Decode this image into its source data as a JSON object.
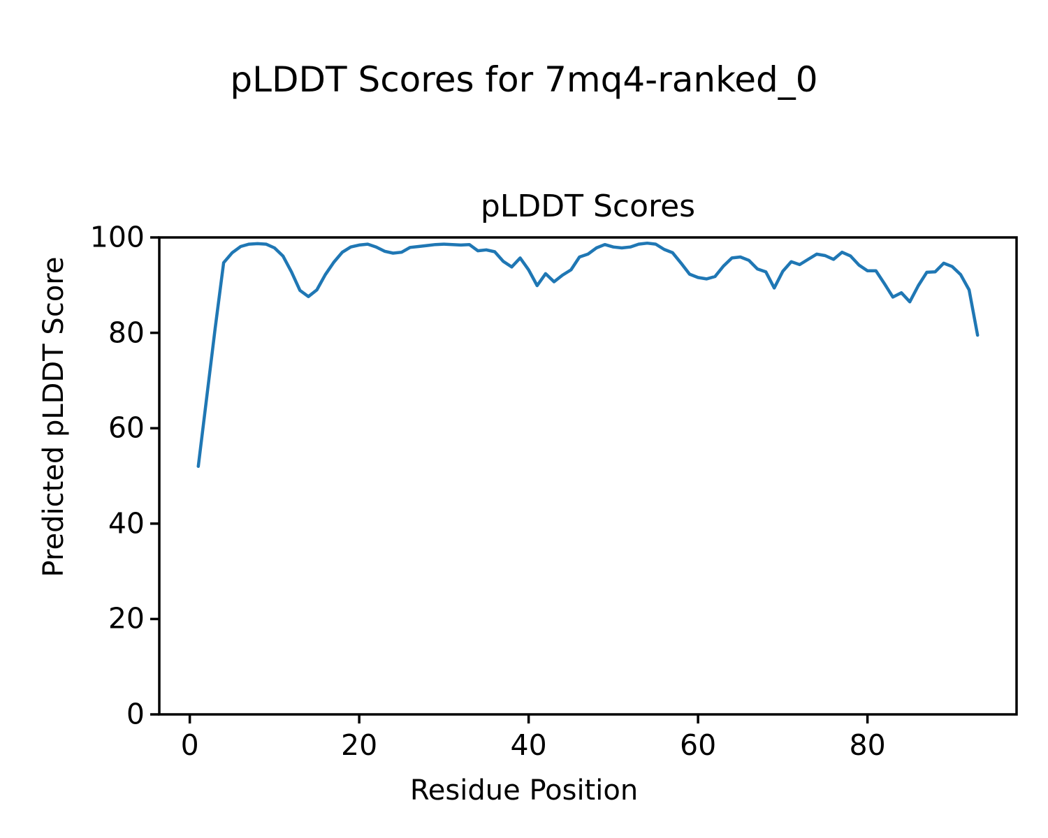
{
  "figure": {
    "suptitle": "pLDDT Scores for 7mq4-ranked_0"
  },
  "chart_data": {
    "type": "line",
    "title": "pLDDT Scores",
    "xlabel": "Residue Position",
    "ylabel": "Predicted pLDDT Score",
    "residue_start": 1,
    "x_range": [
      1,
      93
    ],
    "values": [
      52.0,
      66.5,
      81.0,
      94.7,
      96.8,
      98.1,
      98.6,
      98.7,
      98.6,
      97.8,
      96.1,
      92.8,
      88.9,
      87.6,
      89.0,
      92.2,
      94.8,
      96.9,
      98.0,
      98.4,
      98.6,
      98.0,
      97.1,
      96.7,
      96.9,
      97.9,
      98.1,
      98.3,
      98.5,
      98.6,
      98.5,
      98.4,
      98.5,
      97.2,
      97.4,
      97.0,
      95.0,
      93.8,
      95.7,
      93.2,
      89.9,
      92.4,
      90.7,
      92.1,
      93.2,
      95.9,
      96.5,
      97.8,
      98.5,
      98.0,
      97.8,
      98.0,
      98.6,
      98.8,
      98.6,
      97.5,
      96.8,
      94.6,
      92.3,
      91.6,
      91.3,
      91.8,
      94.0,
      95.7,
      95.9,
      95.2,
      93.4,
      92.8,
      89.4,
      92.9,
      94.9,
      94.3,
      95.4,
      96.5,
      96.2,
      95.4,
      96.9,
      96.1,
      94.2,
      93.0,
      93.0,
      90.3,
      87.5,
      88.4,
      86.5,
      89.9,
      92.7,
      92.8,
      94.6,
      93.9,
      92.2,
      89.0,
      79.5
    ],
    "xticks": [
      0,
      20,
      40,
      60,
      80
    ],
    "yticks": [
      0,
      20,
      40,
      60,
      80,
      100
    ],
    "xlim": [
      -3.6,
      97.6
    ],
    "ylim": [
      0,
      100
    ],
    "grid": false,
    "legend": "none",
    "line_color": "#1f77b4",
    "spine_color": "#000000",
    "background": "#ffffff",
    "text_color": "#000000"
  }
}
